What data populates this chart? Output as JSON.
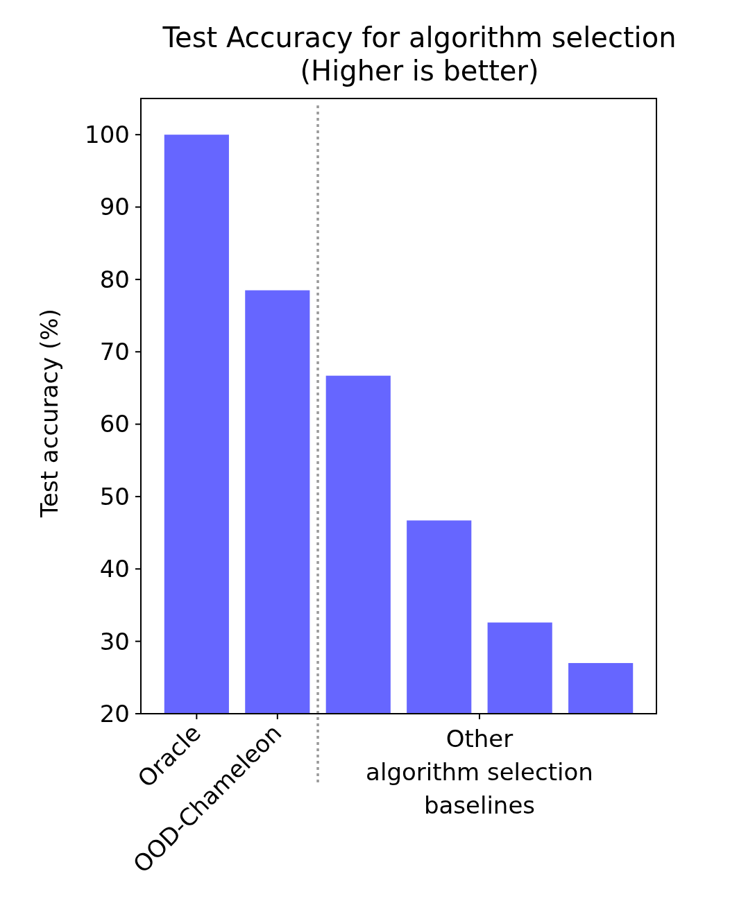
{
  "chart_data": {
    "type": "bar",
    "title": "Test Accuracy for algorithm selection\n(Higher is better)",
    "ylabel": "Test accuracy (%)",
    "categories": [
      "Oracle",
      "OOD-Chameleon",
      null,
      null,
      null,
      null
    ],
    "values": [
      100,
      78.5,
      66.7,
      46.7,
      32.6,
      27.0
    ],
    "color": "#6666ff",
    "annotations": [
      "Other\nalgorithm selection\nbaselines"
    ],
    "ylim": [
      20,
      105
    ],
    "yticks": [
      20,
      30,
      40,
      50,
      60,
      70,
      80,
      90,
      100
    ],
    "grid": false
  }
}
